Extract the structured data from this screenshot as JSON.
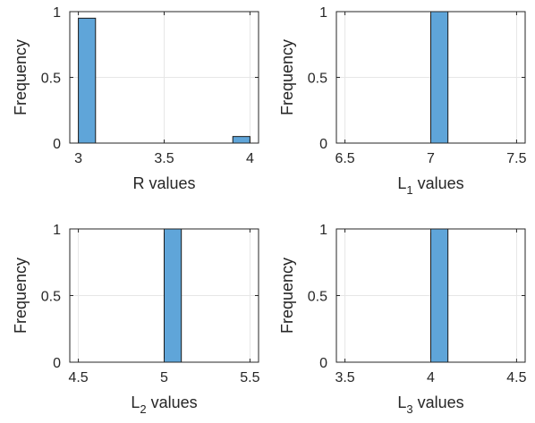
{
  "chart_data": [
    {
      "type": "histogram",
      "xlabel": "R values",
      "ylabel": "Frequency",
      "xlim": [
        2.95,
        4.05
      ],
      "ylim": [
        0,
        1
      ],
      "xticks": [
        "3",
        "3.5",
        "4"
      ],
      "yticks": [
        "0",
        "0.5",
        "1"
      ],
      "grid": true,
      "bars": [
        {
          "x0": 3.0,
          "x1": 3.1,
          "value": 0.95
        },
        {
          "x0": 3.9,
          "x1": 4.0,
          "value": 0.05
        }
      ]
    },
    {
      "type": "histogram",
      "xlabel": "L",
      "xlabel_sub": "1",
      "xlabel_suffix": " values",
      "ylabel": "Frequency",
      "xlim": [
        6.45,
        7.55
      ],
      "ylim": [
        0,
        1
      ],
      "xticks": [
        "6.5",
        "7",
        "7.5"
      ],
      "yticks": [
        "0",
        "0.5",
        "1"
      ],
      "grid": true,
      "bars": [
        {
          "x0": 7.0,
          "x1": 7.1,
          "value": 1
        }
      ]
    },
    {
      "type": "histogram",
      "xlabel": "L",
      "xlabel_sub": "2",
      "xlabel_suffix": " values",
      "ylabel": "Frequency",
      "xlim": [
        4.45,
        5.55
      ],
      "ylim": [
        0,
        1
      ],
      "xticks": [
        "4.5",
        "5",
        "5.5"
      ],
      "yticks": [
        "0",
        "0.5",
        "1"
      ],
      "grid": true,
      "bars": [
        {
          "x0": 5.0,
          "x1": 5.1,
          "value": 1
        }
      ]
    },
    {
      "type": "histogram",
      "xlabel": "L",
      "xlabel_sub": "3",
      "xlabel_suffix": " values",
      "ylabel": "Frequency",
      "xlim": [
        3.45,
        4.55
      ],
      "ylim": [
        0,
        1
      ],
      "xticks": [
        "3.5",
        "4",
        "4.5"
      ],
      "yticks": [
        "0",
        "0.5",
        "1"
      ],
      "grid": true,
      "bars": [
        {
          "x0": 4.0,
          "x1": 4.1,
          "value": 1
        }
      ]
    }
  ],
  "colors": {
    "bar_fill": "#5fa5d9",
    "bar_edge": "#1a1a1a",
    "axis": "#262626",
    "grid": "#e6e6e6",
    "background": "#ffffff"
  }
}
